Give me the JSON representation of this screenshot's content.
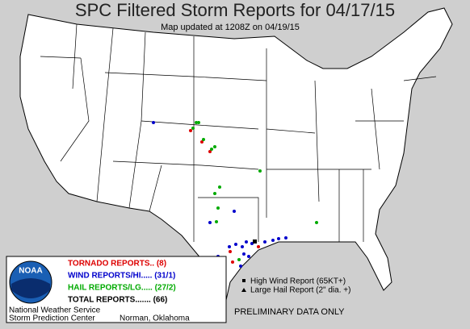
{
  "header": {
    "title": "SPC Filtered Storm Reports for 04/17/15",
    "subtitle": "Map updated at 1208Z on 04/19/15"
  },
  "legend": {
    "logo": "NOAA",
    "tornado": "TORNADO REPORTS.. (8)",
    "wind": "WIND REPORTS/HI..... (31/1)",
    "hail": "HAIL REPORTS/LG..... (27/2)",
    "total": "TOTAL REPORTS....... (66)",
    "agency": "National Weather Service",
    "center": "Storm Prediction Center",
    "location": "Norman, Oklahoma"
  },
  "key": {
    "high_wind": "High Wind Report (65KT+)",
    "large_hail": "Large Hail Report (2\" dia. +)"
  },
  "footer": {
    "notice": "PRELIMINARY DATA ONLY"
  }
}
